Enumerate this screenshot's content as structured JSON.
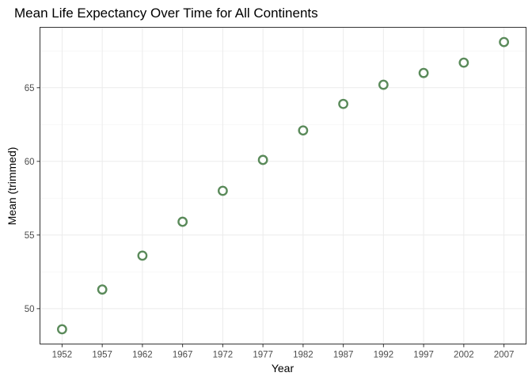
{
  "chart_data": {
    "type": "scatter",
    "title": "Mean Life Expectancy Over Time for All Continents",
    "xlabel": "Year",
    "ylabel": "Mean (trimmed)",
    "x": [
      1952,
      1957,
      1962,
      1967,
      1972,
      1977,
      1982,
      1987,
      1992,
      1997,
      2002,
      2007
    ],
    "y": [
      48.6,
      51.3,
      53.6,
      55.9,
      58.0,
      60.1,
      62.1,
      63.9,
      65.2,
      66.0,
      66.7,
      68.1
    ],
    "xticks": [
      "1952",
      "1957",
      "1962",
      "1967",
      "1972",
      "1977",
      "1982",
      "1987",
      "1992",
      "1997",
      "2002",
      "2007"
    ],
    "yticks": [
      50,
      55,
      60,
      65
    ],
    "ytick_labels": [
      "50",
      "55",
      "60",
      "65"
    ],
    "xlim": [
      1949.25,
      2009.75
    ],
    "ylim": [
      47.6,
      69.1
    ],
    "grid": true,
    "point_color": "#5a8a5a",
    "point_fill": "#ffffff"
  }
}
